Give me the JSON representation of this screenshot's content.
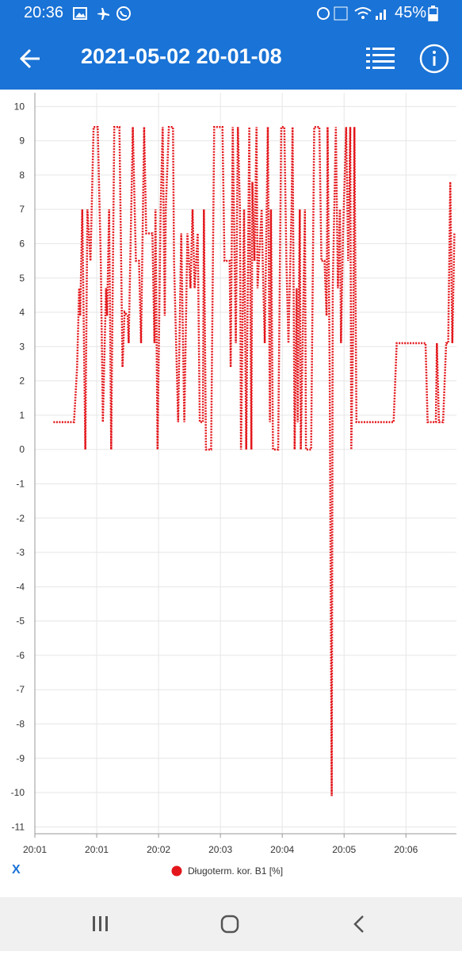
{
  "status_bar": {
    "time": "20:36",
    "battery": "45%"
  },
  "app_bar": {
    "title": "2021-05-02 20-01-08"
  },
  "x_button": "X",
  "chart_data": {
    "type": "line",
    "x": [
      18,
      38,
      41,
      43,
      44,
      46,
      49,
      51,
      54,
      57,
      61,
      64,
      66,
      69,
      70,
      72,
      74,
      77,
      82,
      85,
      87,
      90,
      91,
      95,
      98,
      101,
      103,
      106,
      108,
      114,
      116,
      117,
      119,
      122,
      124,
      126,
      127,
      130,
      134,
      135,
      139,
      142,
      145,
      148,
      151,
      153,
      155,
      158,
      160,
      163,
      164,
      166,
      171,
      174,
      182,
      184,
      189,
      190,
      192,
      195,
      197,
      199,
      200,
      203,
      205,
      208,
      210,
      211,
      213,
      215,
      216,
      220,
      221,
      223,
      226,
      228,
      229,
      231,
      236,
      239,
      242,
      244,
      246,
      249,
      250,
      252,
      254,
      255,
      257,
      258,
      262,
      263,
      268,
      271,
      276,
      278,
      281,
      283,
      284,
      286,
      288,
      289,
      292,
      294,
      296,
      297,
      299,
      302,
      304,
      306,
      307,
      309,
      310,
      312,
      348,
      351,
      379,
      381,
      389,
      390,
      392,
      396,
      399,
      401,
      403,
      405,
      407
    ],
    "series": [
      {
        "name": "Długoterm. kor. B1 [%]",
        "color": "#e3161b",
        "values": [
          0.8,
          0.8,
          2.4,
          4.7,
          3.9,
          7,
          0,
          7,
          5.5,
          9.4,
          9.4,
          5.5,
          0.8,
          4.7,
          3.9,
          7,
          0,
          9.4,
          9.4,
          2.4,
          4.0,
          3.9,
          3.1,
          9.4,
          5.5,
          5.5,
          3.1,
          9.4,
          6.3,
          6.3,
          3.1,
          7,
          0,
          7,
          9.4,
          3.9,
          7,
          9.4,
          9.4,
          5.5,
          0.8,
          6.3,
          0.8,
          6.3,
          4.7,
          7,
          4.7,
          6.3,
          0.8,
          0.8,
          7,
          0,
          0,
          9.4,
          9.4,
          5.5,
          5.5,
          2.4,
          9.4,
          3.1,
          9.4,
          7,
          0,
          7,
          0,
          9.4,
          0,
          7.8,
          5.5,
          9.4,
          4.7,
          7,
          5.5,
          3.1,
          9.4,
          0.8,
          7,
          0,
          0,
          9.4,
          9.4,
          5.5,
          3.1,
          7,
          9.4,
          0,
          4.7,
          0.8,
          7,
          0,
          7,
          0,
          0,
          9.4,
          9.4,
          5.5,
          5.5,
          3.9,
          9.4,
          2.4,
          -10.1,
          4.7,
          9.4,
          4.7,
          7,
          3.1,
          6.3,
          9.4,
          5.5,
          9.4,
          0,
          3.9,
          9.4,
          0.8,
          0.8,
          3.1,
          3.1,
          0.8,
          0.8,
          3.1,
          0.8,
          0.8,
          3.1,
          3.1,
          7.8,
          3.1,
          6.3
        ]
      }
    ],
    "xlim": [
      0,
      409
    ],
    "xticks": [
      {
        "value": 0,
        "label": "20:01"
      },
      {
        "value": 60,
        "label": "20:01"
      },
      {
        "value": 120,
        "label": "20:02"
      },
      {
        "value": 180,
        "label": "20:03"
      },
      {
        "value": 240,
        "label": "20:04"
      },
      {
        "value": 300,
        "label": "20:05"
      },
      {
        "value": 360,
        "label": "20:06"
      }
    ],
    "ylim": [
      -11.2,
      10.4
    ],
    "yticks": [
      -11,
      -10,
      -9,
      -8,
      -7,
      -6,
      -5,
      -4,
      -3,
      -2,
      -1,
      0,
      1,
      2,
      3,
      4,
      5,
      6,
      7,
      8,
      9,
      10
    ],
    "grid": true,
    "legend": "bottom"
  }
}
